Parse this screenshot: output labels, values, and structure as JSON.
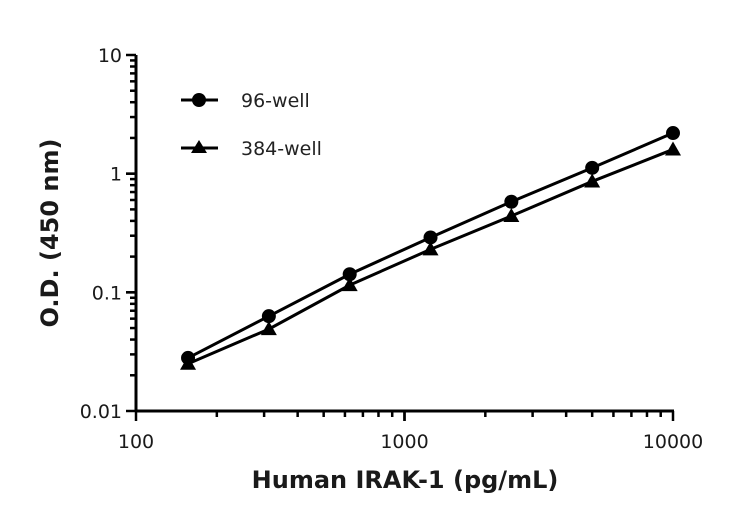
{
  "chart_data": {
    "type": "line",
    "title": "",
    "xlabel": "Human IRAK-1 (pg/mL)",
    "ylabel": "O.D. (450 nm)",
    "xscale": "log",
    "yscale": "log",
    "xlim": [
      100,
      10000
    ],
    "ylim": [
      0.01,
      10
    ],
    "xticks": [
      "100",
      "1000",
      "10000"
    ],
    "yticks": [
      "0.01",
      "0.1",
      "1",
      "10"
    ],
    "grid": false,
    "legend_position": "top-left",
    "x": [
      156.25,
      312.5,
      625,
      1250,
      2500,
      5000,
      10000
    ],
    "series": [
      {
        "name": "96-well",
        "marker": "circle",
        "color": "#000000",
        "values": [
          0.028,
          0.063,
          0.142,
          0.29,
          0.58,
          1.12,
          2.2
        ]
      },
      {
        "name": "384-well",
        "marker": "triangle",
        "color": "#000000",
        "values": [
          0.025,
          0.049,
          0.115,
          0.23,
          0.44,
          0.86,
          1.6
        ]
      }
    ]
  }
}
